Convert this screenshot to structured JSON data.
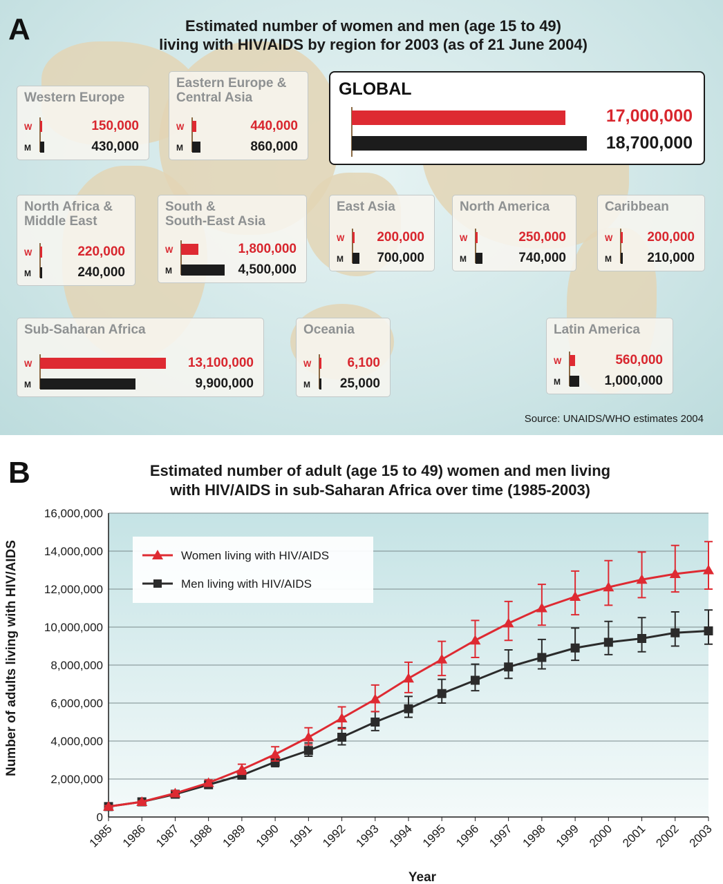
{
  "panel_a": {
    "letter": "A",
    "title_line1": "Estimated number of women and men (age 15 to 49)",
    "title_line2": "living with HIV/AIDS by region for 2003 (as of 21 June 2004)",
    "w_label": "W",
    "m_label": "M",
    "global": {
      "name": "GLOBAL",
      "women": "17,000,000",
      "men": "18,700,000",
      "women_value": 17000000,
      "men_value": 18700000
    },
    "regions": [
      {
        "name": "Western Europe",
        "women": "150,000",
        "men": "430,000",
        "women_value": 150000,
        "men_value": 430000
      },
      {
        "name": "Eastern Europe &\nCentral Asia",
        "women": "440,000",
        "men": "860,000",
        "women_value": 440000,
        "men_value": 860000
      },
      {
        "name": "North Africa &\nMiddle East",
        "women": "220,000",
        "men": "240,000",
        "women_value": 220000,
        "men_value": 240000
      },
      {
        "name": "South &\nSouth-East Asia",
        "women": "1,800,000",
        "men": "4,500,000",
        "women_value": 1800000,
        "men_value": 4500000
      },
      {
        "name": "East Asia",
        "women": "200,000",
        "men": "700,000",
        "women_value": 200000,
        "men_value": 700000
      },
      {
        "name": "North America",
        "women": "250,000",
        "men": "740,000",
        "women_value": 250000,
        "men_value": 740000
      },
      {
        "name": "Caribbean",
        "women": "200,000",
        "men": "210,000",
        "women_value": 200000,
        "men_value": 210000
      },
      {
        "name": "Sub-Saharan Africa",
        "women": "13,100,000",
        "men": "9,900,000",
        "women_value": 13100000,
        "men_value": 9900000
      },
      {
        "name": "Oceania",
        "women": "6,100",
        "men": "25,000",
        "women_value": 6100,
        "men_value": 25000
      },
      {
        "name": "Latin America",
        "women": "560,000",
        "men": "1,000,000",
        "women_value": 560000,
        "men_value": 1000000
      }
    ],
    "source": "Source: UNAIDS/WHO estimates 2004"
  },
  "panel_b": {
    "letter": "B",
    "title_line1": "Estimated number of adult (age 15 to 49) women and men living",
    "title_line2": "with HIV/AIDS in sub-Saharan Africa over time (1985-2003)"
  },
  "colors": {
    "women": "#de2a32",
    "men": "#2b2b2b",
    "grid": "#7a8a8c"
  },
  "chart_data": [
    {
      "type": "bar",
      "title": "Estimated number of women and men (age 15 to 49) living with HIV/AIDS by region for 2003 (as of 21 June 2004)",
      "categories": [
        "GLOBAL",
        "Western Europe",
        "Eastern Europe & Central Asia",
        "North Africa & Middle East",
        "South & South-East Asia",
        "East Asia",
        "North America",
        "Caribbean",
        "Sub-Saharan Africa",
        "Oceania",
        "Latin America"
      ],
      "series": [
        {
          "name": "W",
          "values": [
            17000000,
            150000,
            440000,
            220000,
            1800000,
            200000,
            250000,
            200000,
            13100000,
            6100,
            560000
          ]
        },
        {
          "name": "M",
          "values": [
            18700000,
            430000,
            860000,
            240000,
            4500000,
            700000,
            740000,
            210000,
            9900000,
            25000,
            1000000
          ]
        }
      ]
    },
    {
      "type": "line",
      "title": "Estimated number of adult (age 15 to 49) women and men living with HIV/AIDS in sub-Saharan Africa over time (1985-2003)",
      "xlabel": "Year",
      "ylabel": "Number of adults living with HIV/AIDS",
      "ylim": [
        0,
        16000000
      ],
      "yticks": [
        0,
        2000000,
        4000000,
        6000000,
        8000000,
        10000000,
        12000000,
        14000000,
        16000000
      ],
      "ytick_labels": [
        "0",
        "2,000,000",
        "4,000,000",
        "6,000,000",
        "8,000,000",
        "10,000,000",
        "12,000,000",
        "14,000,000",
        "16,000,000"
      ],
      "x": [
        "1985",
        "1986",
        "1987",
        "1988",
        "1989",
        "1990",
        "1991",
        "1992",
        "1993",
        "1994",
        "1995",
        "1996",
        "1997",
        "1998",
        "1999",
        "2000",
        "2001",
        "2002",
        "2003"
      ],
      "grid": true,
      "legend_position": "top-left",
      "series": [
        {
          "name": "Women living with HIV/AIDS",
          "marker": "triangle",
          "values": [
            550000,
            800000,
            1250000,
            1800000,
            2500000,
            3300000,
            4200000,
            5200000,
            6200000,
            7300000,
            8300000,
            9300000,
            10200000,
            11000000,
            11600000,
            12100000,
            12500000,
            12800000,
            13000000
          ],
          "error_high": [
            600000,
            850000,
            1380000,
            1950000,
            2780000,
            3700000,
            4700000,
            5800000,
            6950000,
            8150000,
            9250000,
            10350000,
            11350000,
            12250000,
            12950000,
            13500000,
            13950000,
            14300000,
            14500000
          ],
          "error_low": [
            500000,
            760000,
            1130000,
            1650000,
            2250000,
            2950000,
            3800000,
            4650000,
            5550000,
            6550000,
            7450000,
            8400000,
            9300000,
            10100000,
            10650000,
            11150000,
            11550000,
            11850000,
            12000000
          ]
        },
        {
          "name": "Men living with HIV/AIDS",
          "marker": "square",
          "values": [
            550000,
            800000,
            1200000,
            1700000,
            2200000,
            2900000,
            3500000,
            4200000,
            5000000,
            5700000,
            6500000,
            7200000,
            7900000,
            8400000,
            8900000,
            9200000,
            9400000,
            9700000,
            9800000
          ],
          "error_high": [
            600000,
            850000,
            1300000,
            1830000,
            2450000,
            3200000,
            3900000,
            4700000,
            5550000,
            6350000,
            7250000,
            8050000,
            8800000,
            9350000,
            9950000,
            10300000,
            10500000,
            10800000,
            10900000
          ],
          "error_low": [
            500000,
            760000,
            1120000,
            1600000,
            2050000,
            2650000,
            3200000,
            3800000,
            4550000,
            5250000,
            6000000,
            6650000,
            7300000,
            7800000,
            8250000,
            8550000,
            8700000,
            9000000,
            9100000
          ]
        }
      ]
    }
  ]
}
